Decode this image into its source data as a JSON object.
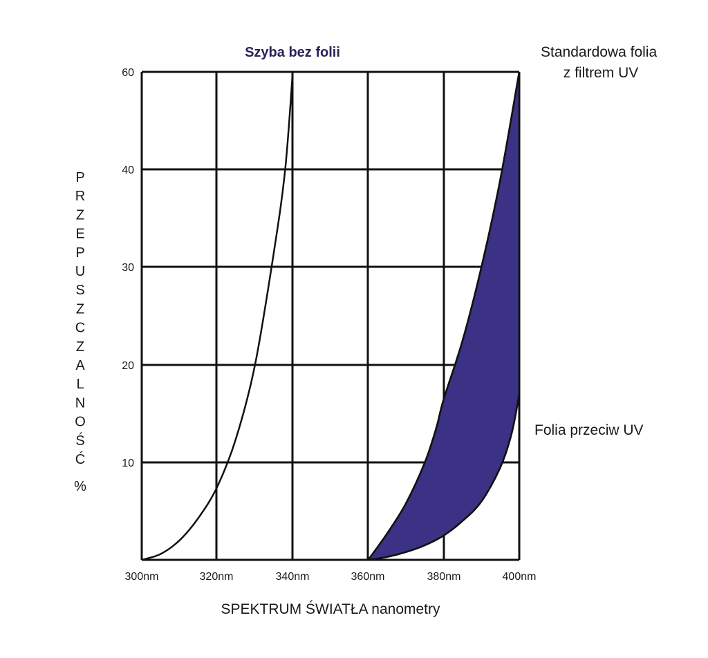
{
  "chart_data": {
    "type": "line",
    "xlabel": "SPEKTRUM ŚWIATŁA nanometry",
    "ylabel": "PRZEPUSZCZALNOŚĆ %",
    "x_ticks": [
      "300nm",
      "320nm",
      "340nm",
      "360nm",
      "380nm",
      "400nm"
    ],
    "y_ticks": [
      "60",
      "40",
      "30",
      "20",
      "10"
    ],
    "grid": true,
    "fill_color": "#3b3285",
    "series": [
      {
        "name": "Szyba bez folii",
        "x": [
          300,
          305,
          310,
          315,
          320,
          325,
          330,
          335,
          338,
          340
        ],
        "y": [
          0,
          0.6,
          2.0,
          4.3,
          7.5,
          12.5,
          20.0,
          31.5,
          40.0,
          50.0
        ]
      },
      {
        "name": "Standardowa folia z filtrem UV",
        "x": [
          360,
          365,
          370,
          375,
          378,
          380,
          385,
          390,
          395,
          400
        ],
        "y": [
          0,
          2.7,
          5.8,
          10.0,
          13.5,
          16.5,
          22.5,
          30.0,
          39.0,
          50.0
        ]
      },
      {
        "name": "Folia przeciw UV",
        "x": [
          360,
          365,
          370,
          375,
          380,
          385,
          390,
          395,
          398,
          400
        ],
        "y": [
          0,
          0.3,
          0.8,
          1.5,
          2.5,
          4.0,
          6.0,
          9.5,
          13.0,
          17.0
        ]
      }
    ]
  }
}
